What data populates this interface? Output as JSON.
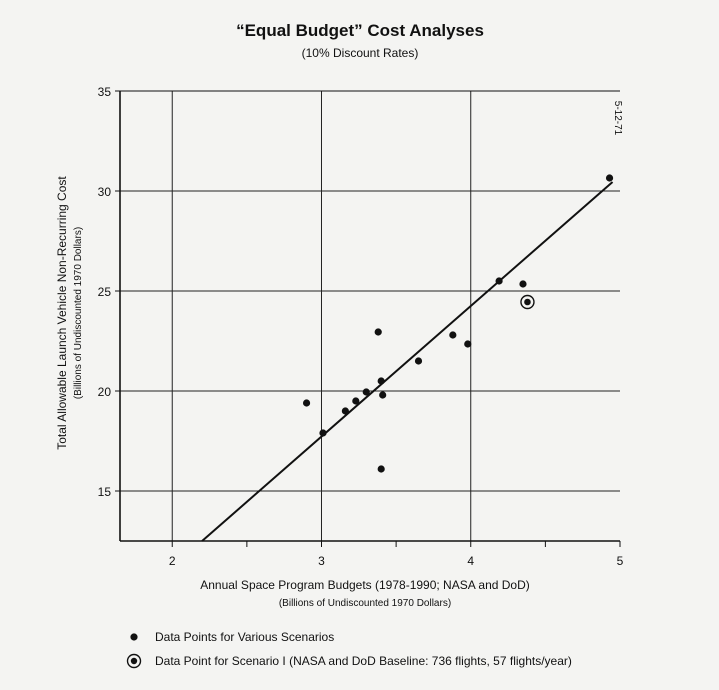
{
  "chart_data": {
    "type": "scatter",
    "title": "“Equal Budget” Cost Analyses",
    "subtitle": "(10% Discount Rates)",
    "xlabel": "Annual Space Program Budgets (1978-1990; NASA and DoD)",
    "xlabel_sub": "(Billions of Undiscounted 1970 Dollars)",
    "ylabel": "Total Allowable Launch Vehicle Non-Recurring Cost",
    "ylabel_sub": "(Billions of Undiscounted 1970 Dollars)",
    "date_stamp": "5-12-71",
    "xlim": [
      1.65,
      5
    ],
    "ylim": [
      12.5,
      35
    ],
    "x_ticks": [
      {
        "value": 2,
        "label": "2"
      },
      {
        "value": 2.5,
        "label": ""
      },
      {
        "value": 3,
        "label": "3"
      },
      {
        "value": 3.5,
        "label": ""
      },
      {
        "value": 4,
        "label": "4"
      },
      {
        "value": 4.5,
        "label": ""
      },
      {
        "value": 5,
        "label": "5"
      }
    ],
    "y_ticks": [
      {
        "value": 15,
        "label": "15"
      },
      {
        "value": 20,
        "label": "20"
      },
      {
        "value": 25,
        "label": "25"
      },
      {
        "value": 30,
        "label": "30"
      },
      {
        "value": 35,
        "label": "35"
      }
    ],
    "x_gridlines": [
      2,
      3,
      4
    ],
    "y_gridlines": [
      15,
      20,
      25,
      30
    ],
    "grid": true,
    "legend_position": "bottom-left",
    "series": [
      {
        "name": "Data Points for Various Scenarios",
        "marker": "dot",
        "points": [
          {
            "x": 2.9,
            "y": 19.4
          },
          {
            "x": 3.01,
            "y": 17.9
          },
          {
            "x": 3.16,
            "y": 19.0
          },
          {
            "x": 3.23,
            "y": 19.5
          },
          {
            "x": 3.3,
            "y": 19.95
          },
          {
            "x": 3.38,
            "y": 22.95
          },
          {
            "x": 3.4,
            "y": 20.5
          },
          {
            "x": 3.41,
            "y": 19.8
          },
          {
            "x": 3.4,
            "y": 16.1
          },
          {
            "x": 3.65,
            "y": 21.5
          },
          {
            "x": 3.88,
            "y": 22.8
          },
          {
            "x": 3.98,
            "y": 22.35
          },
          {
            "x": 4.19,
            "y": 25.5
          },
          {
            "x": 4.35,
            "y": 25.35
          },
          {
            "x": 4.93,
            "y": 30.65
          }
        ]
      },
      {
        "name": "Data Point for Scenario I (NASA and DoD Baseline: 736 flights, 57 flights/year)",
        "marker": "circled-dot",
        "points": [
          {
            "x": 4.38,
            "y": 24.45
          }
        ]
      }
    ],
    "trend_line": {
      "x": [
        2.2,
        4.95
      ],
      "y": [
        12.5,
        30.45
      ]
    }
  }
}
